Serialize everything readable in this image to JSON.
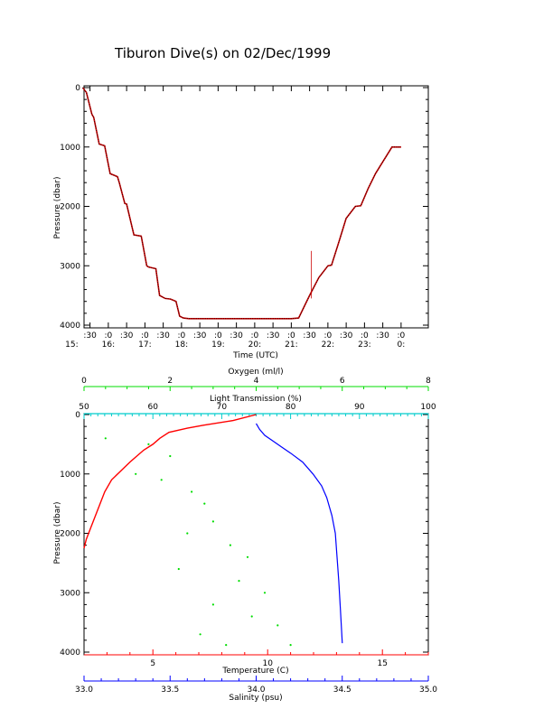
{
  "title": "Tiburon Dive(s) on 02/Dec/1999",
  "colors": {
    "temperature": "#ff0000",
    "salinity": "#0000ff",
    "oxygen": "#00dd00",
    "light_transmission": "#00cccc",
    "dive_track": "#000000",
    "dive_track_overlay": "#cc0000"
  },
  "chart_data": [
    {
      "type": "line",
      "title": "Tiburon Dive(s) on 02/Dec/1999",
      "xlabel": "Time (UTC)",
      "ylabel": "Pressure (dbar)",
      "ylim": [
        4000,
        0
      ],
      "y_ticks": [
        "0",
        "1000",
        "2000",
        "3000",
        "4000"
      ],
      "x_hours": [
        "15:",
        "16:",
        "17:",
        "18:",
        "19:",
        "20:",
        "21:",
        "22:",
        "23:",
        "0:"
      ],
      "x_minute_labels": [
        ":0",
        ":30"
      ],
      "xlim_hours": [
        15.0,
        24.25
      ],
      "series": [
        {
          "x": [
            15.3,
            15.4,
            15.55,
            15.6,
            15.75,
            15.8,
            15.9,
            16.05,
            16.25,
            16.3,
            16.45,
            16.5,
            16.7,
            16.9,
            17.05,
            17.1,
            17.3,
            17.4,
            17.55,
            17.7,
            17.85,
            17.95,
            18.05,
            18.2,
            18.35,
            18.5,
            18.7,
            19.0,
            19.5,
            20.0,
            20.5,
            20.8,
            21.0,
            21.2,
            21.5,
            21.75,
            22.0,
            22.1,
            22.3,
            22.5,
            22.75,
            22.9,
            23.1,
            23.3,
            23.5,
            23.75,
            24.0
          ],
          "y": [
            0,
            80,
            450,
            500,
            950,
            960,
            980,
            1450,
            1500,
            1600,
            1950,
            1960,
            2480,
            2500,
            3000,
            3020,
            3050,
            3500,
            3550,
            3560,
            3600,
            3850,
            3880,
            3890,
            3890,
            3890,
            3890,
            3890,
            3890,
            3890,
            3890,
            3890,
            3890,
            3880,
            3500,
            3200,
            3000,
            2990,
            2600,
            2200,
            2000,
            1990,
            1700,
            1450,
            1250,
            1000,
            1000
          ]
        }
      ],
      "spike": {
        "x": 21.55,
        "y": [
          2750,
          3550
        ]
      }
    },
    {
      "type": "scatter",
      "ylabel": "Pressure (dbar)",
      "ylim": [
        4000,
        0
      ],
      "y_ticks": [
        "0",
        "1000",
        "2000",
        "3000",
        "4000"
      ],
      "axes": {
        "oxygen": {
          "label": "Oxygen (ml/l)",
          "range": [
            0,
            8
          ],
          "ticks": [
            "0",
            "2",
            "4",
            "6",
            "8"
          ]
        },
        "light_transmission": {
          "label": "Light Transmission (%)",
          "range": [
            50,
            100
          ],
          "ticks": [
            "50",
            "60",
            "70",
            "80",
            "90",
            "100"
          ]
        },
        "temperature": {
          "label": "Temperature (C)",
          "range": [
            2,
            17
          ],
          "ticks": [
            "5",
            "10",
            "15"
          ]
        },
        "salinity": {
          "label": "Salinity (psu)",
          "range": [
            33.0,
            35.0
          ],
          "ticks": [
            "33.0",
            "33.5",
            "34.0",
            "34.5",
            "35.0"
          ]
        }
      },
      "series": [
        {
          "name": "Temperature",
          "x": [
            9.5,
            8.5,
            7.2,
            6.5,
            5.7,
            5.3,
            5.0,
            4.6,
            4.3,
            4.0,
            3.6,
            3.2,
            2.9,
            2.7,
            2.5,
            2.3,
            2.1,
            2.0
          ],
          "y": [
            0,
            100,
            180,
            230,
            300,
            400,
            500,
            600,
            700,
            800,
            950,
            1100,
            1300,
            1500,
            1700,
            1900,
            2100,
            2250
          ]
        },
        {
          "name": "Salinity",
          "x": [
            34.0,
            34.02,
            34.05,
            34.1,
            34.15,
            34.2,
            34.27,
            34.33,
            34.38,
            34.41,
            34.44,
            34.46,
            34.47,
            34.48,
            34.49,
            34.5
          ],
          "y": [
            150,
            250,
            350,
            450,
            550,
            650,
            800,
            1000,
            1200,
            1400,
            1700,
            2000,
            2400,
            2800,
            3300,
            3850
          ]
        },
        {
          "name": "Oxygen",
          "x": [
            0.5,
            1.5,
            2.0,
            1.2,
            1.8,
            2.5,
            2.8,
            3.0,
            2.4,
            3.4,
            3.8,
            2.2,
            3.6,
            4.2,
            3.0,
            3.9,
            4.5,
            2.7,
            3.3,
            4.8
          ],
          "y": [
            400,
            500,
            700,
            1000,
            1100,
            1300,
            1500,
            1800,
            2000,
            2200,
            2400,
            2600,
            2800,
            3000,
            3200,
            3400,
            3550,
            3700,
            3880,
            3880
          ]
        }
      ]
    }
  ]
}
